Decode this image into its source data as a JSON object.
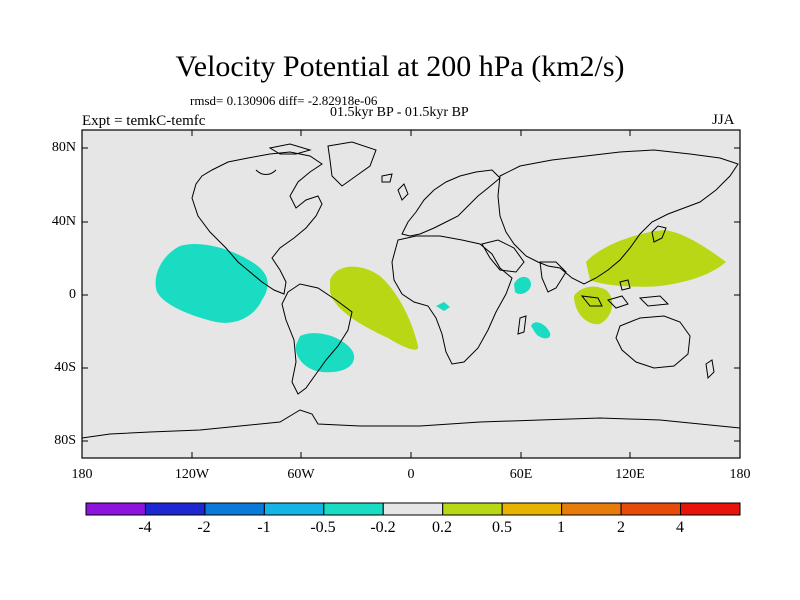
{
  "title": "Velocity Potential at 200 hPa (km2/s)",
  "stats_line": "rmsd= 0.130906 diff= -2.82918e-06",
  "period_line": "01.5kyr BP - 01.5kyr BP",
  "experiment_line": "Expt = temkC-temfc",
  "season": "JJA",
  "map": {
    "projection": "cylindrical equidistant",
    "lat_ticks": [
      "80N",
      "40N",
      "0",
      "40S",
      "80S"
    ],
    "lon_ticks": [
      "180",
      "120W",
      "60W",
      "0",
      "60E",
      "120E",
      "180"
    ],
    "land_color": "#e6e6e6"
  },
  "colorbar": {
    "colors": [
      "#8c14dc",
      "#1e28d2",
      "#0a7ad8",
      "#14b4e6",
      "#19dcc3",
      "#e6e6e6",
      "#b9d714",
      "#e6b400",
      "#e67d0a",
      "#e64b0a",
      "#e6140a"
    ],
    "labels": [
      "-4",
      "-2",
      "-1",
      "-0.5",
      "-0.2",
      "0.2",
      "0.5",
      "1",
      "2",
      "4"
    ]
  },
  "regions": [
    {
      "name": "eastern-pacific",
      "sign": "negative",
      "color": "#19dcc3"
    },
    {
      "name": "south-atlantic",
      "sign": "negative",
      "color": "#19dcc3"
    },
    {
      "name": "central-africa",
      "sign": "negative",
      "color": "#19dcc3"
    },
    {
      "name": "east-africa",
      "sign": "negative",
      "color": "#19dcc3"
    },
    {
      "name": "madagascar",
      "sign": "negative",
      "color": "#19dcc3"
    },
    {
      "name": "tropical-atlantic",
      "sign": "positive",
      "color": "#b9d714"
    },
    {
      "name": "west-pacific",
      "sign": "positive",
      "color": "#b9d714"
    },
    {
      "name": "maritime-continent",
      "sign": "positive",
      "color": "#b9d714"
    }
  ]
}
